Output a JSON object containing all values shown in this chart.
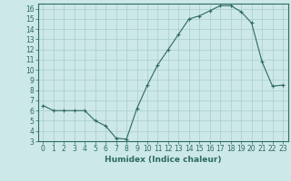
{
  "x": [
    0,
    1,
    2,
    3,
    4,
    5,
    6,
    7,
    8,
    9,
    10,
    11,
    12,
    13,
    14,
    15,
    16,
    17,
    18,
    19,
    20,
    21,
    22,
    23
  ],
  "y": [
    6.5,
    6.0,
    6.0,
    6.0,
    6.0,
    5.0,
    4.5,
    3.3,
    3.2,
    6.2,
    8.5,
    10.5,
    12.0,
    13.5,
    15.0,
    15.3,
    15.8,
    16.3,
    16.3,
    15.7,
    14.6,
    10.8,
    8.4,
    8.5
  ],
  "xlabel": "Humidex (Indice chaleur)",
  "line_color": "#2e6b5e",
  "marker": "+",
  "bg_color": "#cce8e8",
  "grid_color": "#aacccc",
  "xlim": [
    -0.5,
    23.5
  ],
  "ylim": [
    3,
    16.5
  ],
  "yticks": [
    3,
    4,
    5,
    6,
    7,
    8,
    9,
    10,
    11,
    12,
    13,
    14,
    15,
    16
  ],
  "xticks": [
    0,
    1,
    2,
    3,
    4,
    5,
    6,
    7,
    8,
    9,
    10,
    11,
    12,
    13,
    14,
    15,
    16,
    17,
    18,
    19,
    20,
    21,
    22,
    23
  ],
  "tick_fontsize": 5.5,
  "label_fontsize": 6.5
}
